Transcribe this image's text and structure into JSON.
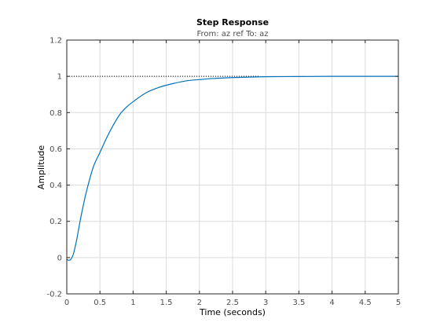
{
  "chart_data": {
    "type": "line",
    "title": "Step Response",
    "subtitle": "From: az ref  To: az",
    "xlabel": "Time (seconds)",
    "ylabel": "Amplitude",
    "xlim": [
      0,
      5
    ],
    "ylim": [
      -0.2,
      1.2
    ],
    "xticks": [
      0,
      0.5,
      1,
      1.5,
      2,
      2.5,
      3,
      3.5,
      4,
      4.5,
      5
    ],
    "xtick_labels": [
      "0",
      "0.5",
      "1",
      "1.5",
      "2",
      "2.5",
      "3",
      "3.5",
      "4",
      "4.5",
      "5"
    ],
    "yticks": [
      -0.2,
      0,
      0.2,
      0.4,
      0.6,
      0.8,
      1,
      1.2
    ],
    "ytick_labels": [
      "-0.2",
      "0",
      "0.2",
      "0.4",
      "0.6",
      "0.8",
      "1",
      "1.2"
    ],
    "grid": true,
    "reference_line": {
      "y": 1,
      "x_range": [
        0,
        2.9
      ],
      "style": "dotted"
    },
    "series": [
      {
        "color": "#0072bd",
        "x": [
          0,
          0.03,
          0.06,
          0.1,
          0.15,
          0.2,
          0.25,
          0.3,
          0.4,
          0.5,
          0.6,
          0.7,
          0.8,
          0.9,
          1.0,
          1.2,
          1.4,
          1.6,
          1.8,
          2.0,
          2.2,
          2.5,
          2.8,
          3.0,
          3.5,
          4.0,
          4.5,
          5.0
        ],
        "y": [
          -0.01,
          -0.015,
          -0.01,
          0.02,
          0.1,
          0.2,
          0.29,
          0.37,
          0.5,
          0.58,
          0.66,
          0.73,
          0.79,
          0.83,
          0.86,
          0.91,
          0.94,
          0.96,
          0.975,
          0.982,
          0.988,
          0.993,
          0.996,
          0.998,
          0.999,
          1.0,
          1.0,
          1.0
        ]
      }
    ]
  },
  "colors": {
    "axes_frame": "#262626",
    "grid": "#dcdcdc",
    "reference_line": "#000000"
  }
}
